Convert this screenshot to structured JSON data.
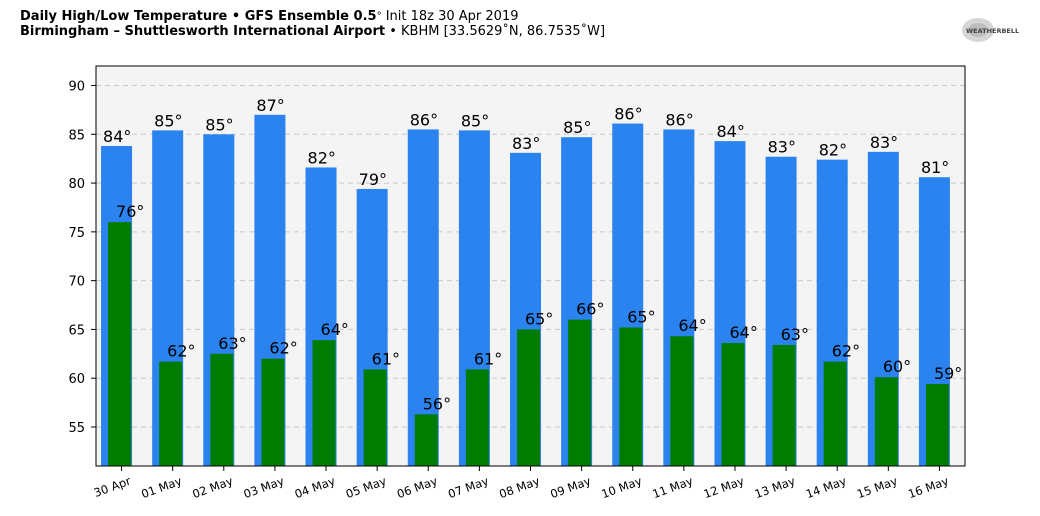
{
  "header": {
    "line1_bold": "Daily High/Low Temperature • GFS Ensemble 0.5",
    "line1_deg": "°",
    "line1_rest": " Init 18z 30 Apr 2019",
    "line2_bold": "Birmingham – Shuttlesworth International Airport",
    "line2_rest": " • KBHM [33.5629˚N, 86.7535˚W]"
  },
  "logo": {
    "text": "WEATHERBELL",
    "icon": "weatherbell-logo"
  },
  "chart_data": {
    "type": "bar",
    "categories": [
      "30 Apr",
      "01 May",
      "02 May",
      "03 May",
      "04 May",
      "05 May",
      "06 May",
      "07 May",
      "08 May",
      "09 May",
      "10 May",
      "11 May",
      "12 May",
      "13 May",
      "14 May",
      "15 May",
      "16 May"
    ],
    "series": [
      {
        "values": [
          83.8,
          85.4,
          85.0,
          87.0,
          81.6,
          79.4,
          85.5,
          85.4,
          83.1,
          84.7,
          86.1,
          85.5,
          84.3,
          82.7,
          82.4,
          83.2,
          80.6
        ],
        "labels": [
          "84°",
          "85°",
          "85°",
          "87°",
          "82°",
          "79°",
          "86°",
          "85°",
          "83°",
          "85°",
          "86°",
          "86°",
          "84°",
          "83°",
          "82°",
          "83°",
          "81°"
        ],
        "color": "#2b83f0"
      },
      {
        "values": [
          76.0,
          61.7,
          62.5,
          62.0,
          63.9,
          60.9,
          56.3,
          60.9,
          65.0,
          66.0,
          65.2,
          64.3,
          63.6,
          63.4,
          61.7,
          60.1,
          59.4
        ],
        "labels": [
          "76°",
          "62°",
          "63°",
          "62°",
          "64°",
          "61°",
          "56°",
          "61°",
          "65°",
          "66°",
          "65°",
          "64°",
          "64°",
          "63°",
          "62°",
          "60°",
          "59°"
        ],
        "color": "#007d00"
      }
    ],
    "yticks": [
      55,
      60,
      65,
      70,
      75,
      80,
      85,
      90
    ],
    "ylim": [
      51,
      92
    ],
    "grid": true,
    "background": "#f4f4f4"
  }
}
